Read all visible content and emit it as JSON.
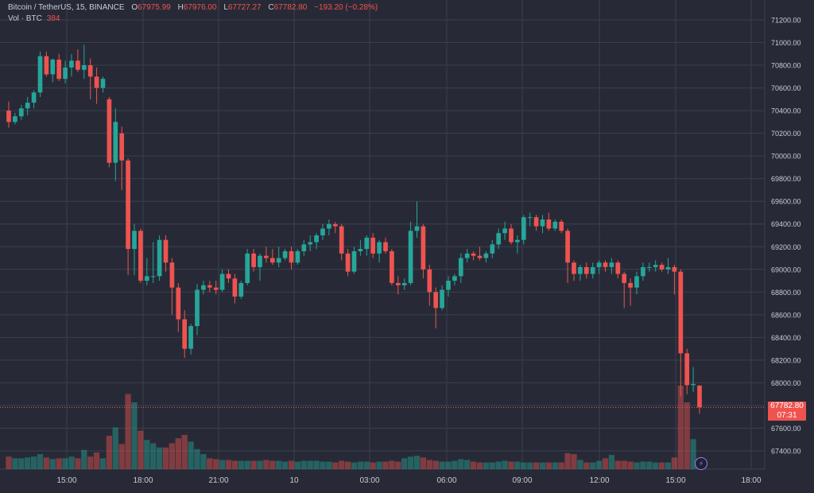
{
  "legend": {
    "symbol": "Bitcoin / TetherUS, 15, BINANCE",
    "open_label": "O",
    "open": "67975.99",
    "high_label": "H",
    "high": "67976.00",
    "low_label": "L",
    "low": "67727.27",
    "close_label": "C",
    "close": "67782.80",
    "change": "−193.20 (−0.28%)",
    "volume_label": "Vol · BTC",
    "volume_value": "384"
  },
  "price_badge": {
    "price": "67782.80",
    "countdown": "07:31"
  },
  "colors": {
    "background": "#272a36",
    "grid": "#3b3f4e",
    "up": "#26a69a",
    "down": "#ef5350",
    "text": "#c9ccd6"
  },
  "chart_data": {
    "type": "candlestick",
    "title": "Bitcoin / TetherUS, 15, BINANCE",
    "y_ticks": [
      "71200.00",
      "71000.00",
      "70800.00",
      "70600.00",
      "70400.00",
      "70200.00",
      "70000.00",
      "69800.00",
      "69600.00",
      "69400.00",
      "69200.00",
      "69000.00",
      "68800.00",
      "68600.00",
      "68400.00",
      "68200.00",
      "68000.00",
      "67800.00",
      "67600.00",
      "67400.00"
    ],
    "ylim": [
      67300,
      71300
    ],
    "x_ticks": [
      "15:00",
      "18:00",
      "21:00",
      "10",
      "03:00",
      "06:00",
      "09:00",
      "12:00",
      "15:00",
      "18:00"
    ],
    "candles": [
      {
        "o": 70400,
        "h": 70480,
        "l": 70250,
        "c": 70300
      },
      {
        "o": 70300,
        "h": 70380,
        "l": 70280,
        "c": 70350
      },
      {
        "o": 70350,
        "h": 70450,
        "l": 70320,
        "c": 70420
      },
      {
        "o": 70420,
        "h": 70520,
        "l": 70360,
        "c": 70470
      },
      {
        "o": 70470,
        "h": 70580,
        "l": 70420,
        "c": 70560
      },
      {
        "o": 70560,
        "h": 70920,
        "l": 70520,
        "c": 70880
      },
      {
        "o": 70880,
        "h": 70920,
        "l": 70700,
        "c": 70720
      },
      {
        "o": 70720,
        "h": 70860,
        "l": 70650,
        "c": 70850
      },
      {
        "o": 70850,
        "h": 70900,
        "l": 70660,
        "c": 70680
      },
      {
        "o": 70680,
        "h": 70840,
        "l": 70640,
        "c": 70780
      },
      {
        "o": 70780,
        "h": 70900,
        "l": 70700,
        "c": 70840
      },
      {
        "o": 70840,
        "h": 70940,
        "l": 70740,
        "c": 70760
      },
      {
        "o": 70760,
        "h": 70980,
        "l": 70680,
        "c": 70800
      },
      {
        "o": 70800,
        "h": 70860,
        "l": 70500,
        "c": 70700
      },
      {
        "o": 70700,
        "h": 70780,
        "l": 70460,
        "c": 70600
      },
      {
        "o": 70600,
        "h": 70700,
        "l": 70560,
        "c": 70680
      },
      {
        "o": 70500,
        "h": 70520,
        "l": 69900,
        "c": 69940
      },
      {
        "o": 69940,
        "h": 70420,
        "l": 69780,
        "c": 70300
      },
      {
        "o": 70200,
        "h": 70260,
        "l": 69700,
        "c": 69960
      },
      {
        "o": 69960,
        "h": 69980,
        "l": 68950,
        "c": 69180
      },
      {
        "o": 69180,
        "h": 69400,
        "l": 68950,
        "c": 69340
      },
      {
        "o": 69340,
        "h": 69360,
        "l": 68880,
        "c": 68900
      },
      {
        "o": 68900,
        "h": 69100,
        "l": 68860,
        "c": 68940
      },
      {
        "o": 68940,
        "h": 69240,
        "l": 68880,
        "c": 68940
      },
      {
        "o": 68940,
        "h": 69300,
        "l": 68900,
        "c": 69260
      },
      {
        "o": 69260,
        "h": 69300,
        "l": 68980,
        "c": 69060
      },
      {
        "o": 69060,
        "h": 69100,
        "l": 68600,
        "c": 68840
      },
      {
        "o": 68840,
        "h": 68880,
        "l": 68450,
        "c": 68560
      },
      {
        "o": 68560,
        "h": 68640,
        "l": 68220,
        "c": 68300
      },
      {
        "o": 68300,
        "h": 68520,
        "l": 68250,
        "c": 68500
      },
      {
        "o": 68500,
        "h": 68870,
        "l": 68420,
        "c": 68820
      },
      {
        "o": 68820,
        "h": 68900,
        "l": 68780,
        "c": 68860
      },
      {
        "o": 68860,
        "h": 68900,
        "l": 68800,
        "c": 68840
      },
      {
        "o": 68840,
        "h": 68900,
        "l": 68780,
        "c": 68820
      },
      {
        "o": 68820,
        "h": 69000,
        "l": 68800,
        "c": 68960
      },
      {
        "o": 68960,
        "h": 69000,
        "l": 68880,
        "c": 68920
      },
      {
        "o": 68920,
        "h": 68960,
        "l": 68700,
        "c": 68760
      },
      {
        "o": 68760,
        "h": 68900,
        "l": 68740,
        "c": 68880
      },
      {
        "o": 68880,
        "h": 69180,
        "l": 68860,
        "c": 69140
      },
      {
        "o": 69140,
        "h": 69180,
        "l": 68980,
        "c": 69020
      },
      {
        "o": 69020,
        "h": 69140,
        "l": 68900,
        "c": 69120
      },
      {
        "o": 69120,
        "h": 69200,
        "l": 69060,
        "c": 69100
      },
      {
        "o": 69100,
        "h": 69180,
        "l": 69040,
        "c": 69060
      },
      {
        "o": 69060,
        "h": 69200,
        "l": 69020,
        "c": 69100
      },
      {
        "o": 69100,
        "h": 69180,
        "l": 69080,
        "c": 69160
      },
      {
        "o": 69160,
        "h": 69200,
        "l": 69000,
        "c": 69060
      },
      {
        "o": 69060,
        "h": 69180,
        "l": 69040,
        "c": 69160
      },
      {
        "o": 69160,
        "h": 69260,
        "l": 69120,
        "c": 69220
      },
      {
        "o": 69220,
        "h": 69300,
        "l": 69160,
        "c": 69240
      },
      {
        "o": 69240,
        "h": 69320,
        "l": 69180,
        "c": 69300
      },
      {
        "o": 69300,
        "h": 69400,
        "l": 69260,
        "c": 69360
      },
      {
        "o": 69360,
        "h": 69440,
        "l": 69300,
        "c": 69400
      },
      {
        "o": 69400,
        "h": 69420,
        "l": 69320,
        "c": 69380
      },
      {
        "o": 69380,
        "h": 69400,
        "l": 69080,
        "c": 69140
      },
      {
        "o": 69140,
        "h": 69180,
        "l": 68940,
        "c": 68980
      },
      {
        "o": 68980,
        "h": 69200,
        "l": 68960,
        "c": 69160
      },
      {
        "o": 69160,
        "h": 69260,
        "l": 69120,
        "c": 69180
      },
      {
        "o": 69180,
        "h": 69300,
        "l": 69120,
        "c": 69280
      },
      {
        "o": 69280,
        "h": 69320,
        "l": 69100,
        "c": 69140
      },
      {
        "o": 69140,
        "h": 69260,
        "l": 69060,
        "c": 69240
      },
      {
        "o": 69240,
        "h": 69280,
        "l": 69140,
        "c": 69160
      },
      {
        "o": 69160,
        "h": 69180,
        "l": 68860,
        "c": 68880
      },
      {
        "o": 68880,
        "h": 68940,
        "l": 68780,
        "c": 68860
      },
      {
        "o": 68860,
        "h": 68920,
        "l": 68820,
        "c": 68880
      },
      {
        "o": 68880,
        "h": 69420,
        "l": 68860,
        "c": 69340
      },
      {
        "o": 69340,
        "h": 69600,
        "l": 69280,
        "c": 69380
      },
      {
        "o": 69380,
        "h": 69400,
        "l": 68920,
        "c": 69000
      },
      {
        "o": 69000,
        "h": 69040,
        "l": 68680,
        "c": 68800
      },
      {
        "o": 68800,
        "h": 68840,
        "l": 68480,
        "c": 68660
      },
      {
        "o": 68660,
        "h": 68860,
        "l": 68640,
        "c": 68820
      },
      {
        "o": 68820,
        "h": 68940,
        "l": 68760,
        "c": 68900
      },
      {
        "o": 68900,
        "h": 68960,
        "l": 68860,
        "c": 68940
      },
      {
        "o": 68940,
        "h": 69140,
        "l": 68880,
        "c": 69100
      },
      {
        "o": 69100,
        "h": 69180,
        "l": 69060,
        "c": 69140
      },
      {
        "o": 69140,
        "h": 69160,
        "l": 69080,
        "c": 69120
      },
      {
        "o": 69120,
        "h": 69200,
        "l": 69080,
        "c": 69100
      },
      {
        "o": 69100,
        "h": 69160,
        "l": 69060,
        "c": 69140
      },
      {
        "o": 69140,
        "h": 69260,
        "l": 69100,
        "c": 69220
      },
      {
        "o": 69220,
        "h": 69360,
        "l": 69180,
        "c": 69320
      },
      {
        "o": 69320,
        "h": 69420,
        "l": 69260,
        "c": 69360
      },
      {
        "o": 69360,
        "h": 69400,
        "l": 69220,
        "c": 69240
      },
      {
        "o": 69240,
        "h": 69300,
        "l": 69140,
        "c": 69260
      },
      {
        "o": 69260,
        "h": 69480,
        "l": 69220,
        "c": 69460
      },
      {
        "o": 69460,
        "h": 69500,
        "l": 69380,
        "c": 69460
      },
      {
        "o": 69460,
        "h": 69480,
        "l": 69340,
        "c": 69380
      },
      {
        "o": 69380,
        "h": 69480,
        "l": 69320,
        "c": 69440
      },
      {
        "o": 69440,
        "h": 69500,
        "l": 69340,
        "c": 69360
      },
      {
        "o": 69360,
        "h": 69440,
        "l": 69340,
        "c": 69420
      },
      {
        "o": 69420,
        "h": 69440,
        "l": 69320,
        "c": 69340
      },
      {
        "o": 69340,
        "h": 69360,
        "l": 68880,
        "c": 69060
      },
      {
        "o": 69060,
        "h": 69080,
        "l": 68900,
        "c": 68960
      },
      {
        "o": 68960,
        "h": 69040,
        "l": 68900,
        "c": 69020
      },
      {
        "o": 69020,
        "h": 69060,
        "l": 68920,
        "c": 68960
      },
      {
        "o": 68960,
        "h": 69060,
        "l": 68920,
        "c": 69020
      },
      {
        "o": 69020,
        "h": 69080,
        "l": 68960,
        "c": 69060
      },
      {
        "o": 69060,
        "h": 69080,
        "l": 68980,
        "c": 69020
      },
      {
        "o": 69020,
        "h": 69100,
        "l": 68960,
        "c": 69060
      },
      {
        "o": 69060,
        "h": 69080,
        "l": 68920,
        "c": 68960
      },
      {
        "o": 68960,
        "h": 68980,
        "l": 68660,
        "c": 68880
      },
      {
        "o": 68880,
        "h": 68920,
        "l": 68680,
        "c": 68840
      },
      {
        "o": 68840,
        "h": 68980,
        "l": 68780,
        "c": 68940
      },
      {
        "o": 68940,
        "h": 69060,
        "l": 68900,
        "c": 69020
      },
      {
        "o": 69020,
        "h": 69060,
        "l": 68980,
        "c": 69020
      },
      {
        "o": 69020,
        "h": 69080,
        "l": 68980,
        "c": 69040
      },
      {
        "o": 69040,
        "h": 69060,
        "l": 68980,
        "c": 69000
      },
      {
        "o": 69000,
        "h": 69100,
        "l": 68960,
        "c": 69020
      },
      {
        "o": 69020,
        "h": 69040,
        "l": 68780,
        "c": 68980
      },
      {
        "o": 68980,
        "h": 69000,
        "l": 67880,
        "c": 68260
      },
      {
        "o": 68260,
        "h": 68300,
        "l": 67900,
        "c": 67980
      },
      {
        "o": 67980,
        "h": 68140,
        "l": 67920,
        "c": 67990
      },
      {
        "o": 67976,
        "h": 67976,
        "l": 67727,
        "c": 67783
      }
    ],
    "volumes": [
      30,
      26,
      26,
      28,
      30,
      36,
      28,
      24,
      26,
      26,
      30,
      26,
      46,
      30,
      40,
      26,
      80,
      100,
      60,
      180,
      160,
      92,
      70,
      62,
      52,
      52,
      62,
      74,
      82,
      66,
      48,
      36,
      26,
      24,
      22,
      22,
      20,
      20,
      20,
      20,
      20,
      22,
      20,
      20,
      18,
      20,
      18,
      20,
      20,
      20,
      18,
      18,
      16,
      20,
      18,
      16,
      18,
      18,
      16,
      18,
      18,
      20,
      18,
      26,
      30,
      32,
      28,
      22,
      20,
      18,
      18,
      20,
      24,
      22,
      18,
      16,
      16,
      16,
      18,
      20,
      18,
      18,
      16,
      16,
      16,
      16,
      16,
      16,
      16,
      38,
      36,
      22,
      16,
      16,
      20,
      26,
      34,
      20,
      20,
      18,
      16,
      18,
      18,
      16,
      16,
      16,
      28,
      200,
      160,
      72,
      26
    ],
    "last_price": 67782.8
  }
}
